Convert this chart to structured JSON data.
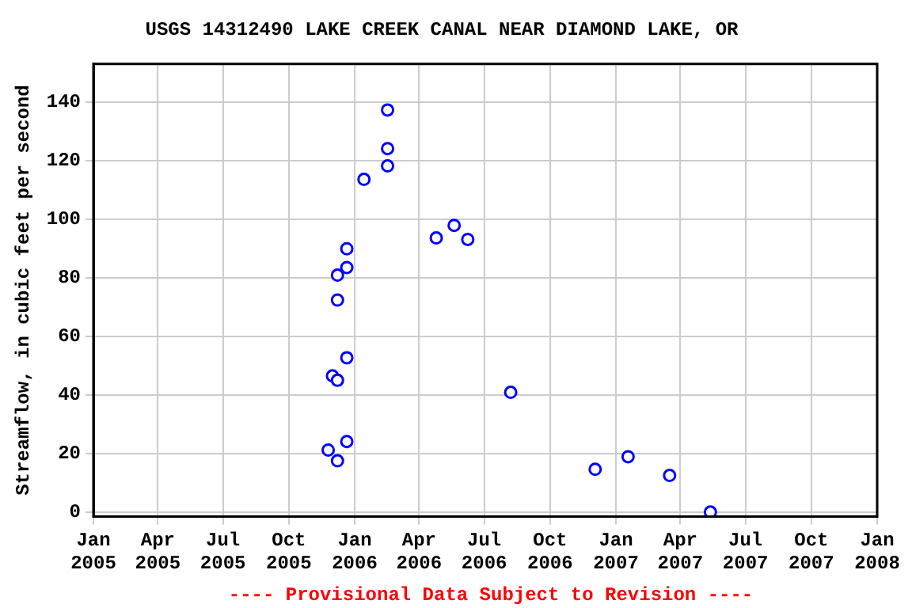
{
  "chart_data": {
    "type": "scatter",
    "title": "USGS 14312490 LAKE CREEK CANAL NEAR DIAMOND LAKE, OR",
    "ylabel": "Streamflow, in cubic feet per second",
    "x": [
      "2005-11-25",
      "2005-12-08",
      "2005-12-21",
      "2005-12-01",
      "2005-12-08",
      "2005-12-21",
      "2005-12-08",
      "2005-12-08",
      "2005-12-21",
      "2005-12-21",
      "2006-01-14",
      "2006-02-16",
      "2006-02-16",
      "2006-02-16",
      "2006-04-25",
      "2006-05-20",
      "2006-06-08",
      "2006-08-07",
      "2006-12-03",
      "2007-01-18",
      "2007-03-17",
      "2007-05-13"
    ],
    "series": [
      {
        "color": "#0000ff",
        "values": [
          21.2,
          17.5,
          24.1,
          46.5,
          45,
          52.7,
          72.4,
          80.9,
          83.5,
          89.9,
          113.6,
          118.2,
          124.1,
          137.3,
          93.6,
          97.9,
          93.1,
          40.9,
          14.6,
          18.9,
          12.5,
          0
        ]
      }
    ],
    "xlim": [
      "2005-01-01",
      "2008-01-01"
    ],
    "xticks": [
      {
        "value": "2005-01",
        "label": "Jan 2005"
      },
      {
        "value": "2005-04",
        "label": "Apr 2005"
      },
      {
        "value": "2005-07",
        "label": "Jul 2005"
      },
      {
        "value": "2005-10",
        "label": "Oct 2005"
      },
      {
        "value": "2006-01",
        "label": "Jan 2006"
      },
      {
        "value": "2006-04",
        "label": "Apr 2006"
      },
      {
        "value": "2006-07",
        "label": "Jul 2006"
      },
      {
        "value": "2006-10",
        "label": "Oct 2006"
      },
      {
        "value": "2007-01",
        "label": "Jan 2007"
      },
      {
        "value": "2007-04",
        "label": "Apr 2007"
      },
      {
        "value": "2007-07",
        "label": "Jul 2007"
      },
      {
        "value": "2007-10",
        "label": "Oct 2007"
      },
      {
        "value": "2008-01",
        "label": "Jan 2008"
      }
    ],
    "ylim": [
      -1.5,
      153
    ],
    "yticks": [
      0,
      20,
      40,
      60,
      80,
      100,
      120,
      140
    ],
    "grid": true,
    "marker": "circle",
    "legend": false,
    "annotations": [
      "---- Provisional Data Subject to Revision ----"
    ]
  }
}
